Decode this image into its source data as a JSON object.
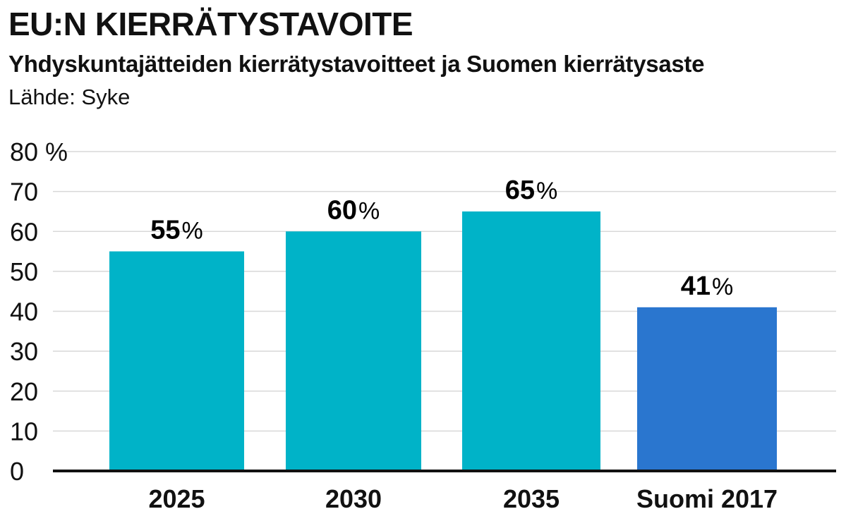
{
  "header": {
    "title": "EU:N KIERRÄTYSTAVOITE",
    "subtitle": "Yhdyskuntajätteiden kierrätystavoitteet ja Suomen kierrätysaste",
    "source": "Lähde: Syke"
  },
  "colors": {
    "target_bar": "#00b3c8",
    "actual_bar": "#2a76cf",
    "grid": "#d8d8d8",
    "axis": "#111111"
  },
  "chart_data": {
    "type": "bar",
    "title": "EU:N KIERRÄTYSTAVOITE",
    "subtitle": "Yhdyskuntajätteiden kierrätystavoitteet ja Suomen kierrätysaste",
    "xlabel": "",
    "ylabel": "",
    "ylim": [
      0,
      80
    ],
    "grid": true,
    "y_ticks": [
      "0",
      "10",
      "20",
      "30",
      "40",
      "50",
      "60",
      "70",
      "80 %"
    ],
    "categories": [
      "2025",
      "2030",
      "2035",
      "Suomi 2017"
    ],
    "values": [
      55,
      60,
      65,
      41
    ],
    "data_labels": [
      {
        "number": "55",
        "unit": "%"
      },
      {
        "number": "60",
        "unit": "%"
      },
      {
        "number": "65",
        "unit": "%"
      },
      {
        "number": "41",
        "unit": "%"
      }
    ],
    "bar_colors": [
      "#00b3c8",
      "#00b3c8",
      "#00b3c8",
      "#2a76cf"
    ]
  }
}
